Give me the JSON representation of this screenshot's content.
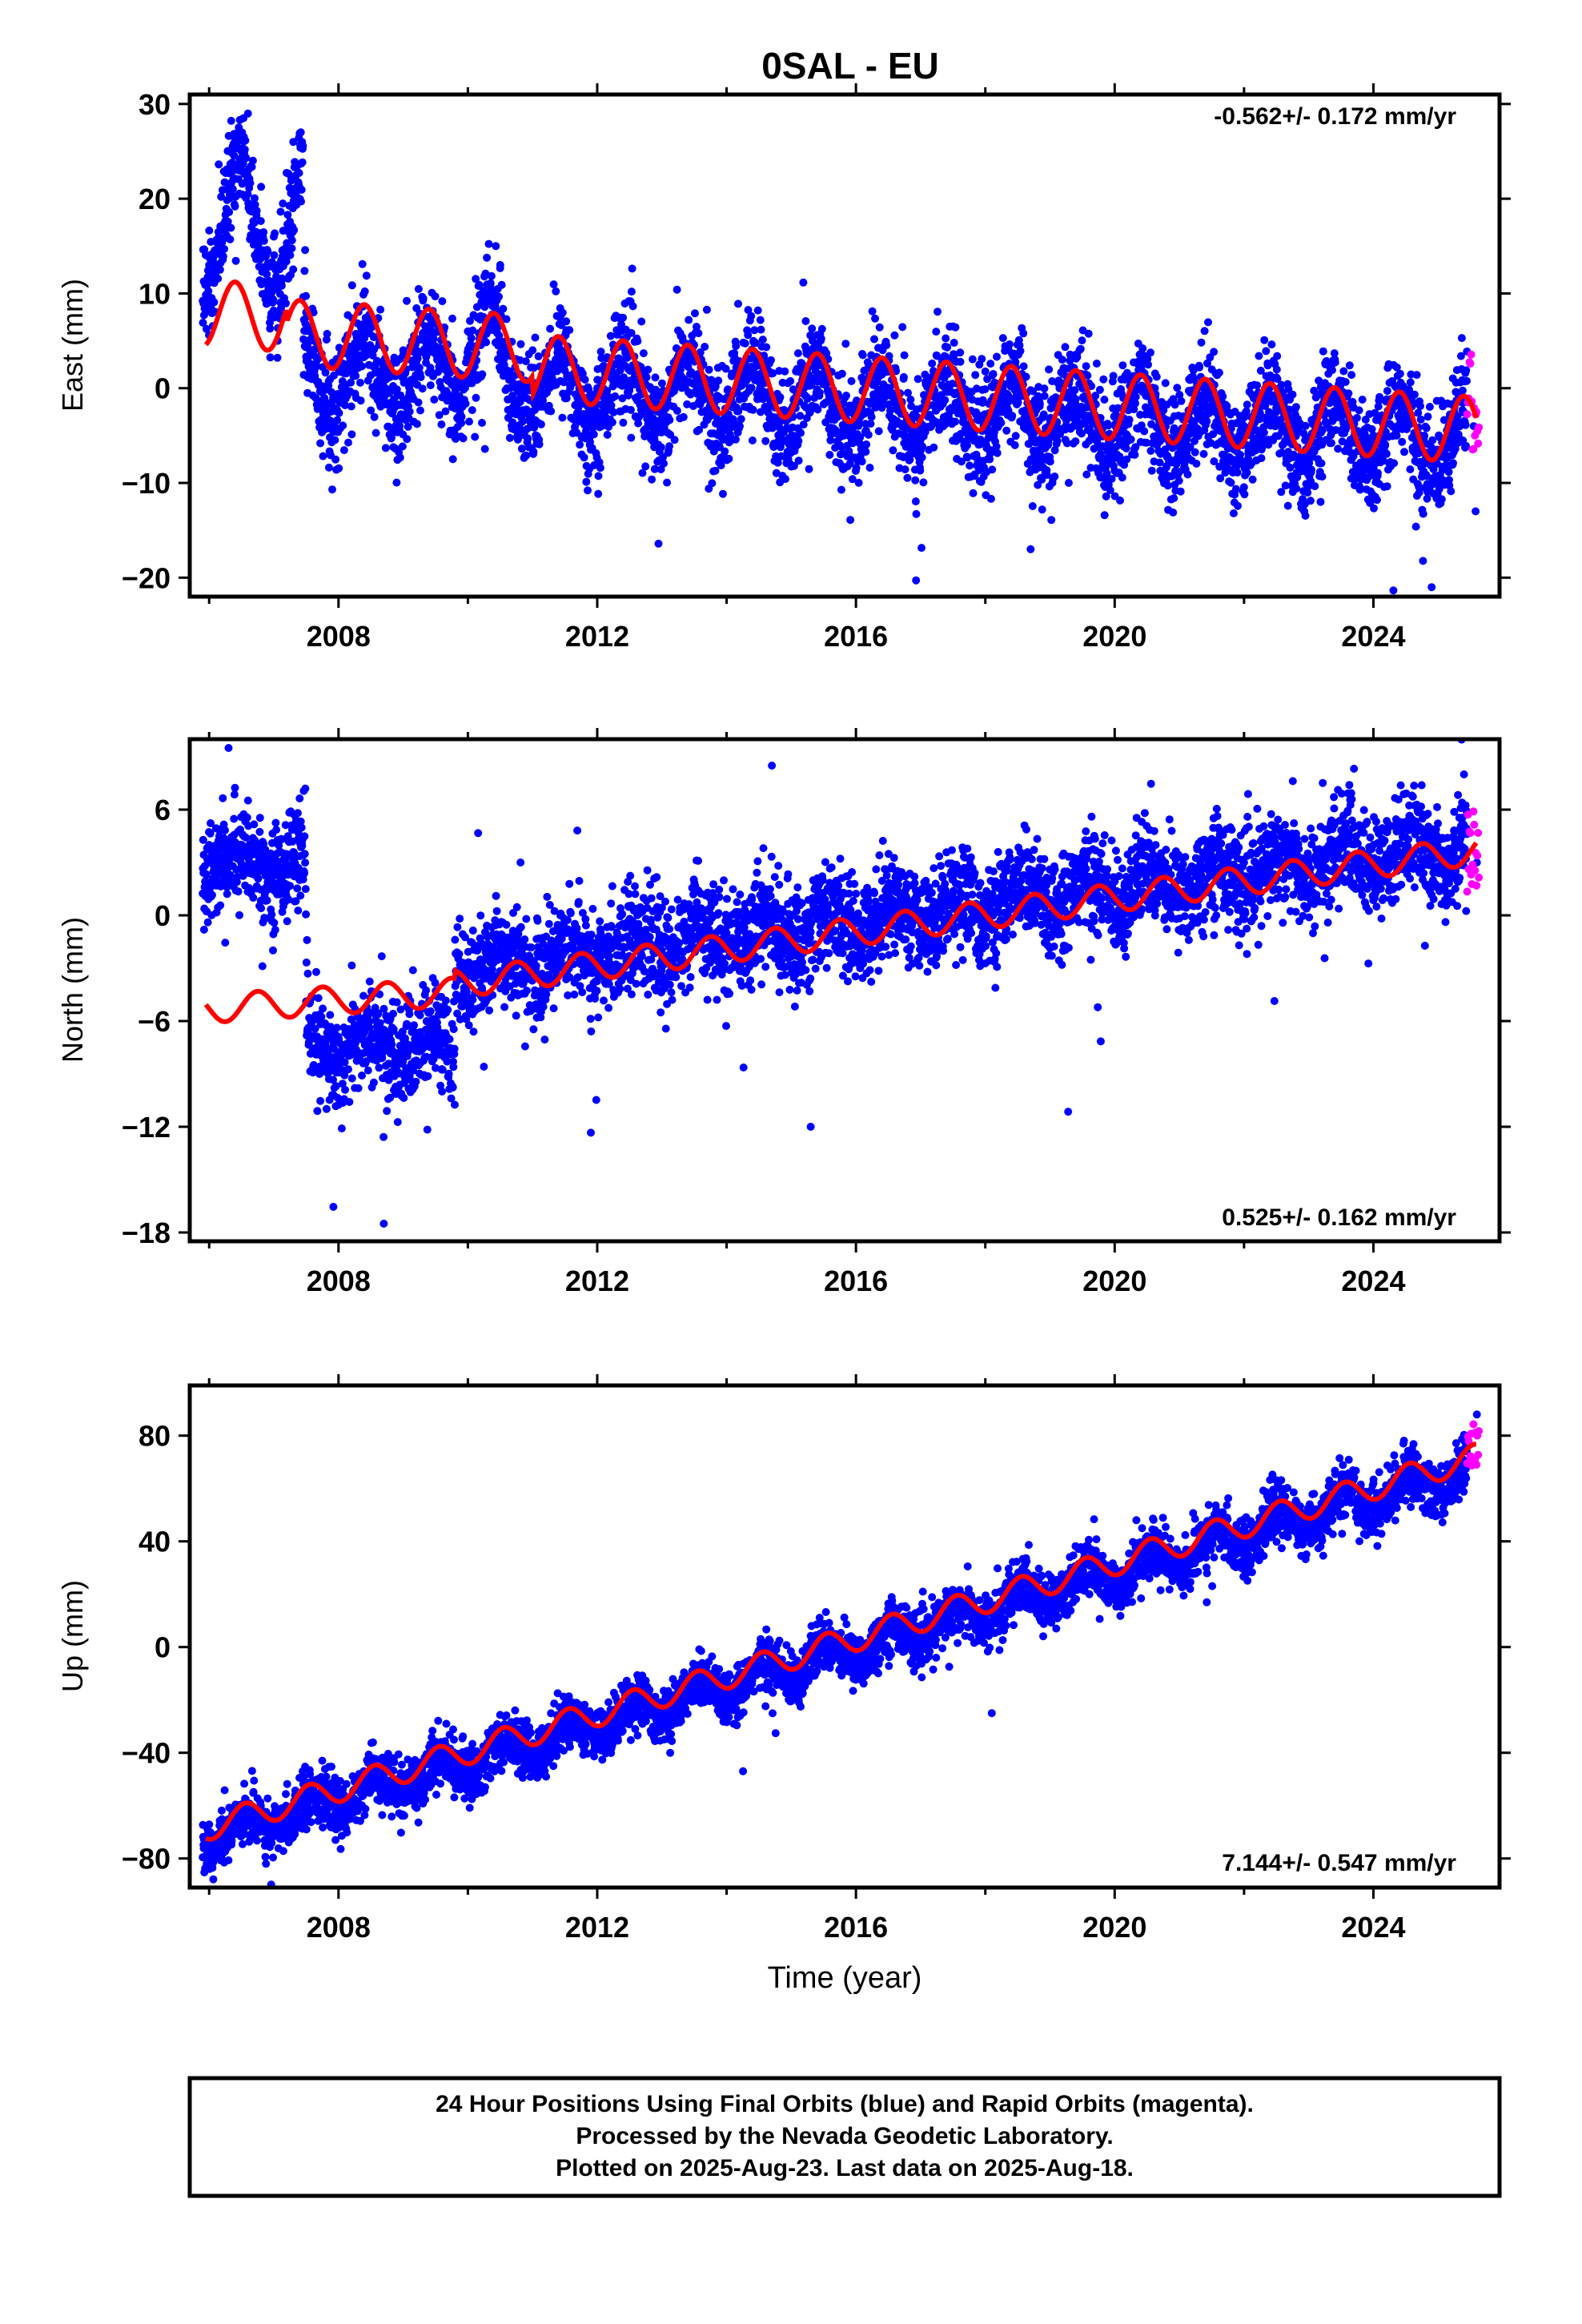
{
  "title": "0SAL - EU",
  "xlabel": "Time (year)",
  "footer": {
    "line1": "24 Hour Positions Using Final Orbits (blue) and Rapid Orbits (magenta).",
    "line2": "Processed by the Nevada Geodetic Laboratory.",
    "line3": "Plotted on 2025-Aug-23. Last data on 2025-Aug-18."
  },
  "colors": {
    "final": "#0000ff",
    "rapid": "#ff00ff",
    "model": "#ff0000"
  },
  "chart_data": [
    {
      "type": "scatter",
      "component": "east",
      "ylabel": "East (mm)",
      "rate_text": "-0.562+/- 0.172 mm/yr",
      "xlim": [
        2005.7,
        2025.95
      ],
      "ylim": [
        -22,
        31
      ],
      "xticks": [
        2008,
        2012,
        2016,
        2020,
        2024
      ],
      "yticks": [
        30,
        20,
        10,
        0,
        -10,
        -20
      ],
      "xminor": [
        2006,
        2010,
        2014,
        2018,
        2022
      ],
      "series": [
        {
          "name": "Final Orbits",
          "color": "#0000ff",
          "data_range": [
            2005.9,
            2025.45
          ]
        },
        {
          "name": "Rapid Orbits",
          "color": "#ff00ff",
          "data_range": [
            2025.45,
            2025.63
          ]
        }
      ],
      "model": {
        "color": "#ff0000",
        "slope_mm_per_yr": -0.562,
        "annual_amplitude_mm": 3.5
      },
      "approx_points": [
        [
          2006.0,
          13
        ],
        [
          2006.5,
          25
        ],
        [
          2006.6,
          29
        ],
        [
          2007.0,
          16
        ],
        [
          2007.3,
          26
        ],
        [
          2007.5,
          8
        ],
        [
          2008.0,
          2
        ],
        [
          2009.0,
          4
        ],
        [
          2010.0,
          6
        ],
        [
          2010.5,
          13
        ],
        [
          2011.0,
          4
        ],
        [
          2012.0,
          0
        ],
        [
          2014.0,
          -1
        ],
        [
          2016.0,
          -2
        ],
        [
          2018.0,
          -3
        ],
        [
          2018.7,
          -17
        ],
        [
          2020.0,
          -3
        ],
        [
          2022.0,
          -4
        ],
        [
          2024.0,
          -5
        ],
        [
          2024.9,
          -21
        ],
        [
          2025.55,
          -4
        ],
        [
          2025.58,
          -13
        ]
      ]
    },
    {
      "type": "scatter",
      "component": "north",
      "ylabel": "North (mm)",
      "rate_text": "0.525+/- 0.162 mm/yr",
      "xlim": [
        2005.7,
        2025.95
      ],
      "ylim": [
        -18.5,
        10
      ],
      "xticks": [
        2008,
        2012,
        2016,
        2020,
        2024
      ],
      "yticks": [
        6,
        0,
        -6,
        -12,
        -18
      ],
      "xminor": [
        2006,
        2010,
        2014,
        2018,
        2022
      ],
      "series": [
        {
          "name": "Final Orbits",
          "color": "#0000ff",
          "data_range": [
            2005.9,
            2025.45
          ]
        },
        {
          "name": "Rapid Orbits",
          "color": "#ff00ff",
          "data_range": [
            2025.45,
            2025.63
          ]
        }
      ],
      "model": {
        "color": "#ff0000",
        "slope_mm_per_yr": 0.525,
        "annual_amplitude_mm": 0.8
      },
      "approx_points": [
        [
          2006.0,
          4
        ],
        [
          2006.3,
          9.5
        ],
        [
          2007.0,
          3
        ],
        [
          2007.4,
          2
        ],
        [
          2007.6,
          -6
        ],
        [
          2008.0,
          -8
        ],
        [
          2008.7,
          -17.5
        ],
        [
          2009.0,
          -7
        ],
        [
          2009.6,
          -10
        ],
        [
          2010.0,
          -3
        ],
        [
          2012.0,
          -2
        ],
        [
          2014.0,
          -1
        ],
        [
          2014.7,
          8.5
        ],
        [
          2015.3,
          -12
        ],
        [
          2016.0,
          0
        ],
        [
          2018.0,
          1
        ],
        [
          2020.0,
          2
        ],
        [
          2022.0,
          3
        ],
        [
          2024.0,
          4
        ],
        [
          2025.4,
          8
        ],
        [
          2025.6,
          3
        ]
      ]
    },
    {
      "type": "scatter",
      "component": "up",
      "ylabel": "Up (mm)",
      "rate_text": "7.144+/- 0.547 mm/yr",
      "xlim": [
        2005.7,
        2025.95
      ],
      "ylim": [
        -91,
        99
      ],
      "xticks": [
        2008,
        2012,
        2016,
        2020,
        2024
      ],
      "yticks": [
        80,
        40,
        0,
        -40,
        -80
      ],
      "xminor": [
        2006,
        2010,
        2014,
        2018,
        2022
      ],
      "series": [
        {
          "name": "Final Orbits",
          "color": "#0000ff",
          "data_range": [
            2005.9,
            2025.45
          ]
        },
        {
          "name": "Rapid Orbits",
          "color": "#ff00ff",
          "data_range": [
            2025.45,
            2025.63
          ]
        }
      ],
      "model": {
        "color": "#ff0000",
        "slope_mm_per_yr": 7.144,
        "annual_amplitude_mm": 5
      },
      "approx_points": [
        [
          2006.0,
          -75
        ],
        [
          2007.0,
          -65
        ],
        [
          2008.0,
          -55
        ],
        [
          2010.0,
          -40
        ],
        [
          2012.0,
          -25
        ],
        [
          2014.0,
          -12
        ],
        [
          2016.0,
          2
        ],
        [
          2018.0,
          15
        ],
        [
          2018.1,
          -25
        ],
        [
          2020.0,
          30
        ],
        [
          2022.0,
          45
        ],
        [
          2024.0,
          62
        ],
        [
          2025.6,
          88
        ]
      ]
    }
  ]
}
